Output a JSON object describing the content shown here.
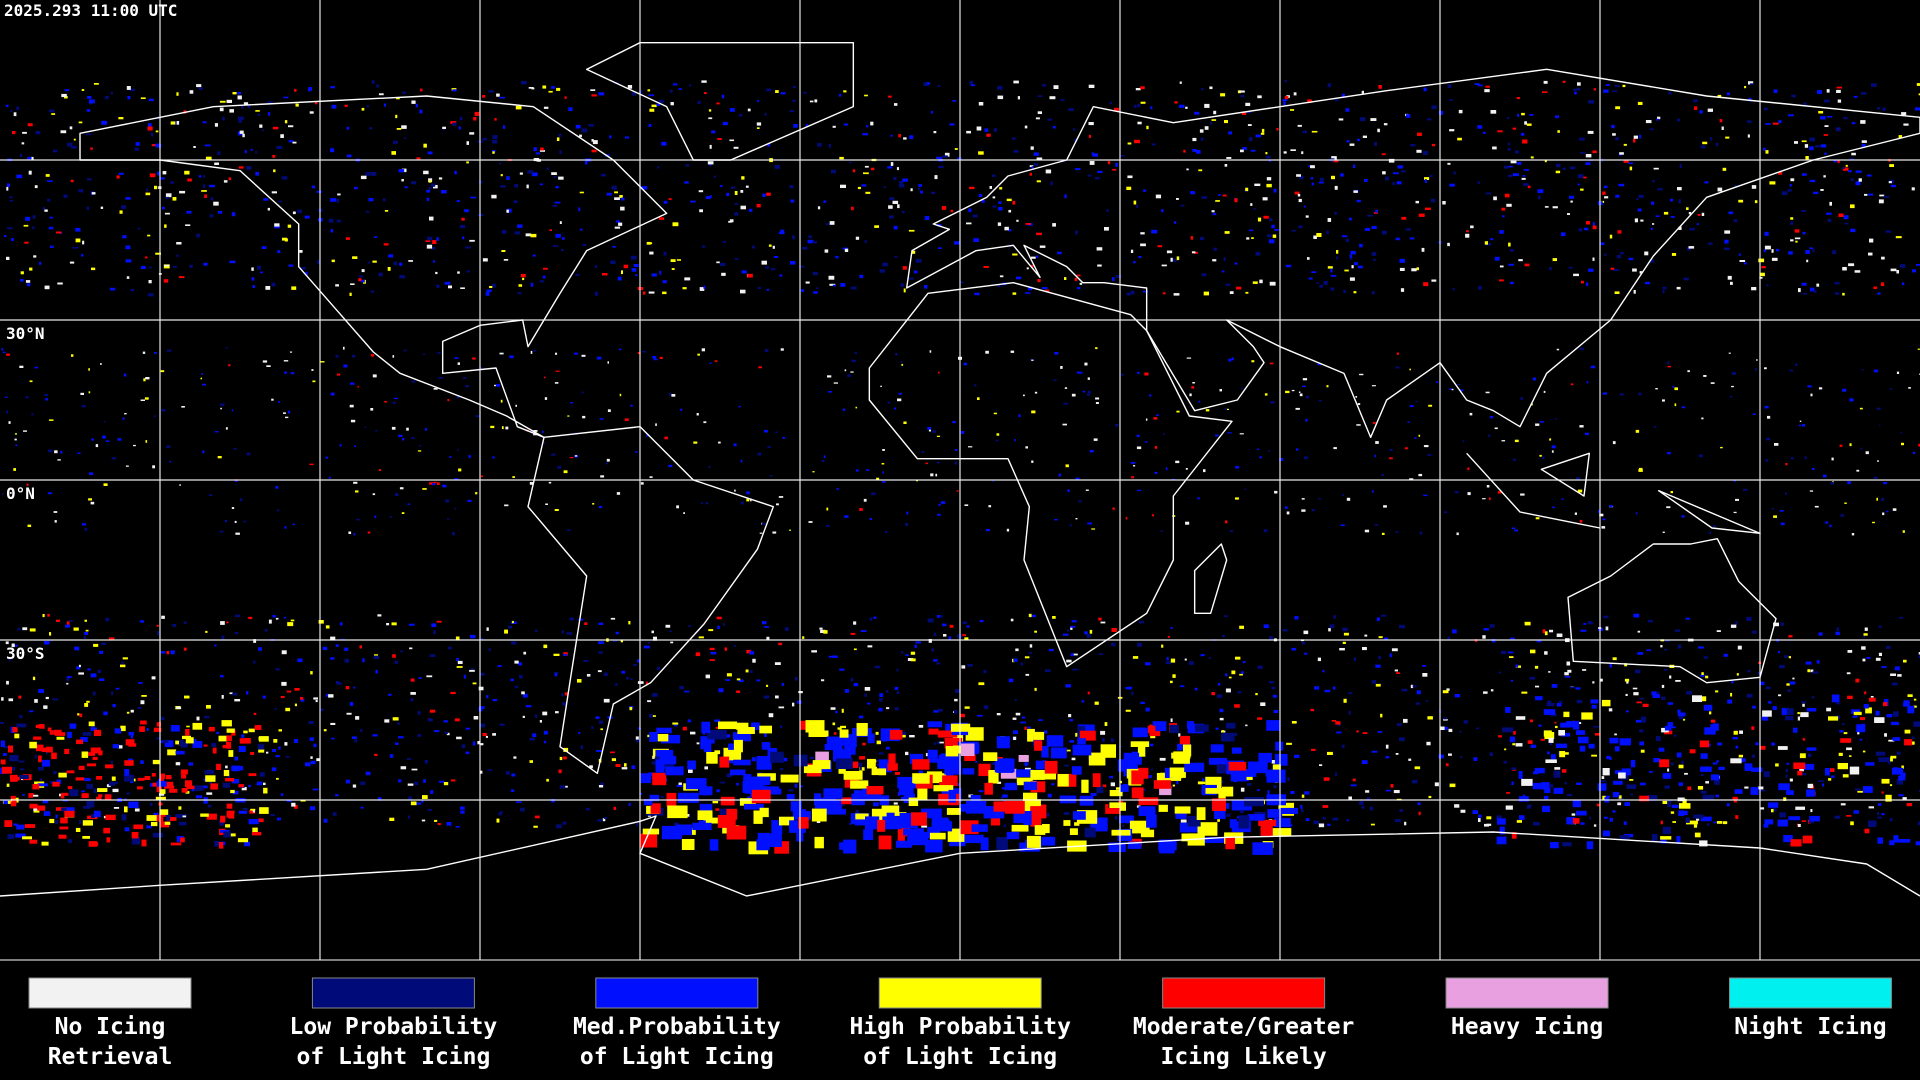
{
  "header": {
    "timestamp": "2025.293 11:00 UTC"
  },
  "map": {
    "latitude_labels": [
      "30°N",
      "0°N",
      "30°S"
    ]
  },
  "legend": {
    "items": [
      {
        "lines": [
          "No Icing",
          "Retrieval"
        ],
        "color": "#f2f2f2"
      },
      {
        "lines": [
          "Low Probability",
          "of Light Icing"
        ],
        "color": "#000a78"
      },
      {
        "lines": [
          "Med.Probability",
          "of Light Icing"
        ],
        "color": "#0010ff"
      },
      {
        "lines": [
          "High Probability",
          "of Light Icing"
        ],
        "color": "#ffff00"
      },
      {
        "lines": [
          "Moderate/Greater",
          "Icing Likely"
        ],
        "color": "#ff0000"
      },
      {
        "lines": [
          "Heavy Icing"
        ],
        "color": "#e8a0e0"
      },
      {
        "lines": [
          "Night Icing"
        ],
        "color": "#00f0f0"
      }
    ]
  }
}
